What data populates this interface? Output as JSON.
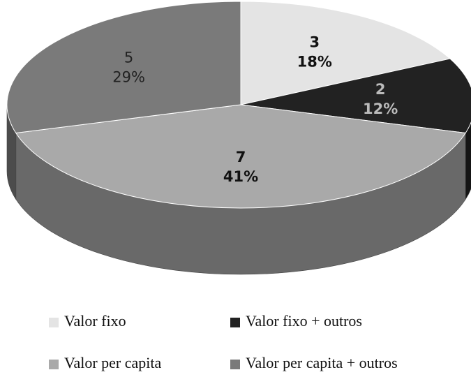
{
  "chart_data": {
    "type": "pie3d",
    "categories": [
      "Valor fixo",
      "Valor fixo + outros",
      "Valor per capita",
      "Valor per capita + outros"
    ],
    "values": [
      3,
      2,
      7,
      5
    ],
    "percent_labels": [
      "18%",
      "12%",
      "41%",
      "29%"
    ],
    "colors": [
      "#e4e4e4",
      "#222222",
      "#a9a9a9",
      "#7a7a7a"
    ],
    "legend": "bottom"
  }
}
